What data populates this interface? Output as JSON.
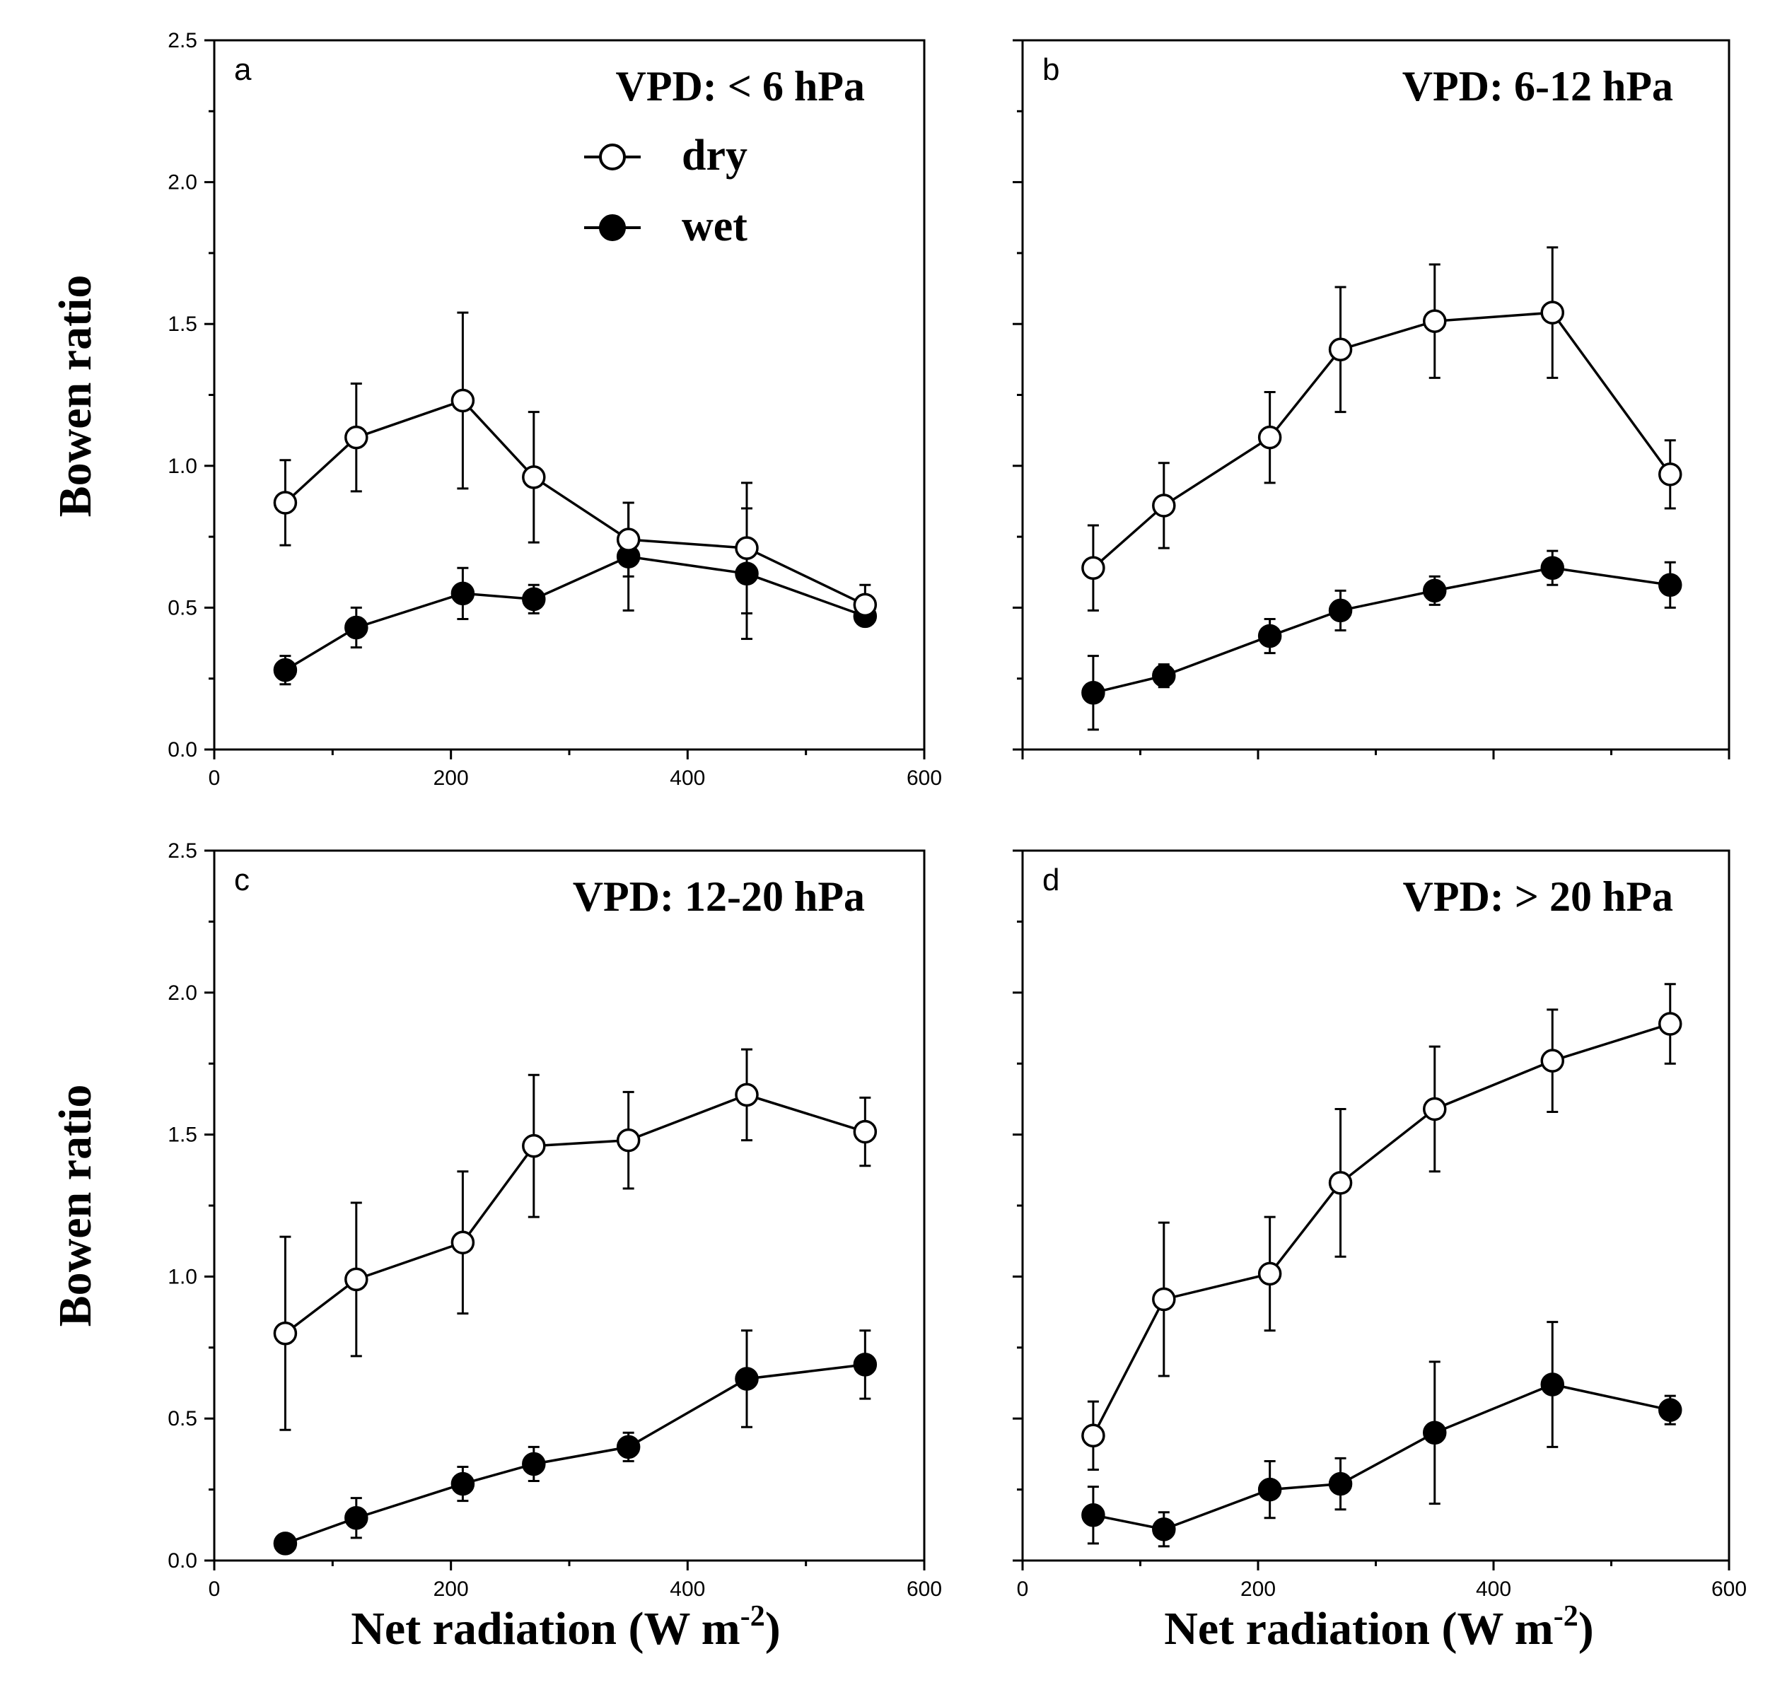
{
  "labels": {
    "ylabel": "Bowen ratio",
    "xlabel_main": "Net radiation (W m",
    "xlabel_sup": "-2",
    "xlabel_close": ")"
  },
  "legend": [
    {
      "name": "dry",
      "style": "open"
    },
    {
      "name": "wet",
      "style": "filled"
    }
  ],
  "chart_data": [
    {
      "type": "line",
      "panel": "a",
      "title": "VPD: < 6 hPa",
      "xlim": [
        0,
        600
      ],
      "ylim": [
        0,
        2.5
      ],
      "xticks": [
        0,
        200,
        400,
        600
      ],
      "yticks": [
        "0.0",
        "0.5",
        "1.0",
        "1.5",
        "2.0",
        "2.5"
      ],
      "x": [
        60,
        120,
        210,
        270,
        350,
        450,
        550
      ],
      "series": [
        {
          "name": "dry",
          "values": [
            0.87,
            1.1,
            1.23,
            0.96,
            0.74,
            0.71,
            0.51
          ],
          "errors": [
            0.15,
            0.19,
            0.31,
            0.23,
            0.13,
            0.23,
            0.07
          ]
        },
        {
          "name": "wet",
          "values": [
            0.28,
            0.43,
            0.55,
            0.53,
            0.68,
            0.62,
            0.47
          ],
          "errors": [
            0.05,
            0.07,
            0.09,
            0.05,
            0.19,
            0.23,
            0.03
          ]
        }
      ]
    },
    {
      "type": "line",
      "panel": "b",
      "title": "VPD: 6-12 hPa",
      "xlim": [
        0,
        600
      ],
      "ylim": [
        0,
        2.5
      ],
      "xticks": [],
      "yticks": [],
      "x": [
        60,
        120,
        210,
        270,
        350,
        450,
        550
      ],
      "series": [
        {
          "name": "dry",
          "values": [
            0.64,
            0.86,
            1.1,
            1.41,
            1.51,
            1.54,
            0.97
          ],
          "errors": [
            0.15,
            0.15,
            0.16,
            0.22,
            0.2,
            0.23,
            0.12
          ]
        },
        {
          "name": "wet",
          "values": [
            0.2,
            0.26,
            0.4,
            0.49,
            0.56,
            0.64,
            0.58
          ],
          "errors": [
            0.13,
            0.04,
            0.06,
            0.07,
            0.05,
            0.06,
            0.08
          ]
        }
      ]
    },
    {
      "type": "line",
      "panel": "c",
      "title": "VPD: 12-20 hPa",
      "xlim": [
        0,
        600
      ],
      "ylim": [
        0,
        2.5
      ],
      "xticks": [
        0,
        200,
        400,
        600
      ],
      "yticks": [
        "0.0",
        "0.5",
        "1.0",
        "1.5",
        "2.0",
        "2.5"
      ],
      "x": [
        60,
        120,
        210,
        270,
        350,
        450,
        550
      ],
      "series": [
        {
          "name": "dry",
          "values": [
            0.8,
            0.99,
            1.12,
            1.46,
            1.48,
            1.64,
            1.51
          ],
          "errors": [
            0.34,
            0.27,
            0.25,
            0.25,
            0.17,
            0.16,
            0.12
          ]
        },
        {
          "name": "wet",
          "values": [
            0.06,
            0.15,
            0.27,
            0.34,
            0.4,
            0.64,
            0.69
          ],
          "errors": [
            0.03,
            0.07,
            0.06,
            0.06,
            0.05,
            0.17,
            0.12
          ]
        }
      ]
    },
    {
      "type": "line",
      "panel": "d",
      "title": "VPD: > 20 hPa",
      "xlim": [
        0,
        600
      ],
      "ylim": [
        0,
        2.5
      ],
      "xticks": [
        0,
        200,
        400,
        600
      ],
      "yticks": [],
      "x": [
        60,
        120,
        210,
        270,
        350,
        450,
        550
      ],
      "series": [
        {
          "name": "dry",
          "values": [
            0.44,
            0.92,
            1.01,
            1.33,
            1.59,
            1.76,
            1.89
          ],
          "errors": [
            0.12,
            0.27,
            0.2,
            0.26,
            0.22,
            0.18,
            0.14
          ]
        },
        {
          "name": "wet",
          "values": [
            0.16,
            0.11,
            0.25,
            0.27,
            0.45,
            0.62,
            0.53
          ],
          "errors": [
            0.1,
            0.06,
            0.1,
            0.09,
            0.25,
            0.22,
            0.05
          ]
        }
      ]
    }
  ]
}
